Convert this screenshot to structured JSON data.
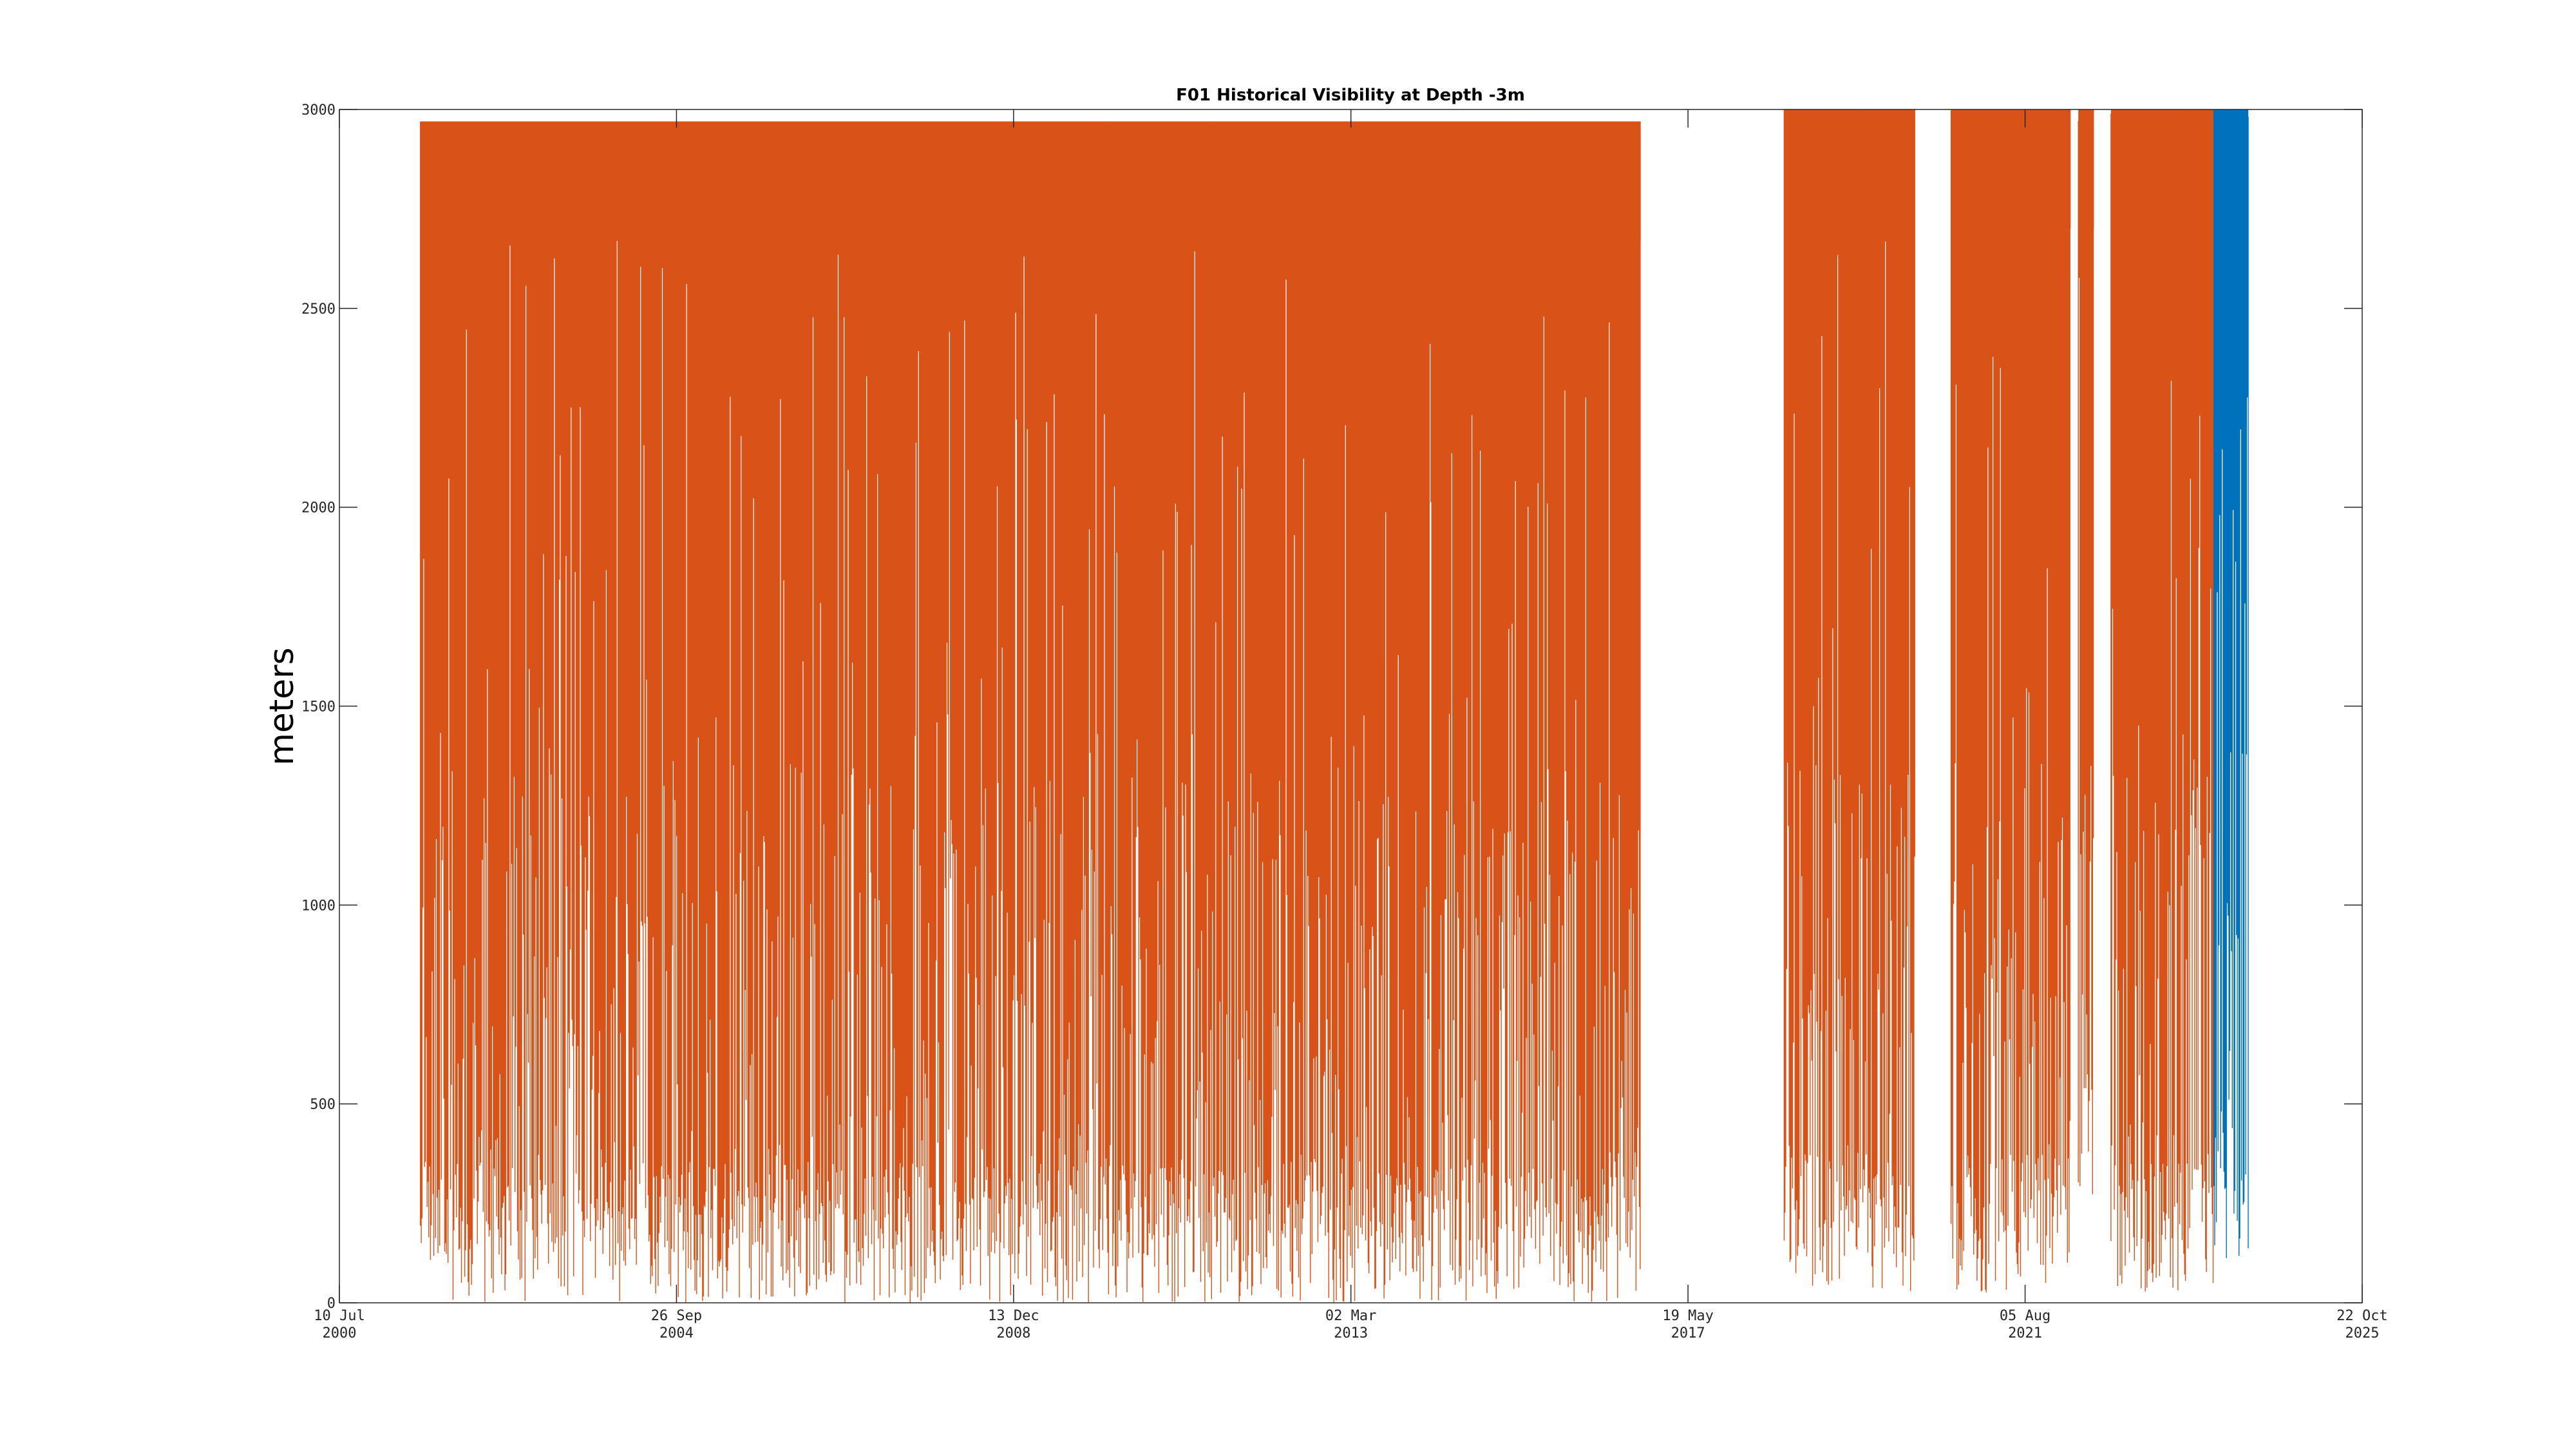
{
  "chart_data": {
    "type": "line",
    "title": "F01 Historical Visibility at Depth -3m",
    "xlabel": "",
    "ylabel": "meters",
    "grid": false,
    "legend": "none",
    "xlim": [
      "2000-07-10",
      "2025-10-22"
    ],
    "ylim": [
      0,
      3000
    ],
    "yticks": [
      0,
      500,
      1000,
      1500,
      2000,
      2500,
      3000
    ],
    "xticks": [
      {
        "date": "2000-07-10",
        "day_label": "10 Jul",
        "year_label": "2000"
      },
      {
        "date": "2004-09-26",
        "day_label": "26 Sep",
        "year_label": "2004"
      },
      {
        "date": "2008-12-13",
        "day_label": "13 Dec",
        "year_label": "2008"
      },
      {
        "date": "2013-03-02",
        "day_label": "02 Mar",
        "year_label": "2013"
      },
      {
        "date": "2017-05-19",
        "day_label": "19 May",
        "year_label": "2017"
      },
      {
        "date": "2021-08-05",
        "day_label": "05 Aug",
        "year_label": "2021"
      },
      {
        "date": "2025-10-22",
        "day_label": "22 Oct",
        "year_label": "2025"
      }
    ],
    "series": [
      {
        "color": "#d95319",
        "segments": [
          {
            "start": "2001-07-15",
            "end": "2016-10-15",
            "min": 0,
            "max": 2970
          },
          {
            "start": "2018-08-01",
            "end": "2020-03-20",
            "min": 20,
            "max": 3000
          },
          {
            "start": "2020-09-01",
            "end": "2022-03-01",
            "min": 20,
            "max": 3000
          },
          {
            "start": "2022-04-05",
            "end": "2022-06-15",
            "min": 260,
            "max": 3000
          },
          {
            "start": "2022-09-01",
            "end": "2023-12-15",
            "min": 20,
            "max": 3000
          }
        ]
      },
      {
        "color": "#0072bd",
        "segments": [
          {
            "start": "2023-12-15",
            "end": "2024-05-20",
            "min": 100,
            "max": 3000
          }
        ]
      }
    ]
  }
}
